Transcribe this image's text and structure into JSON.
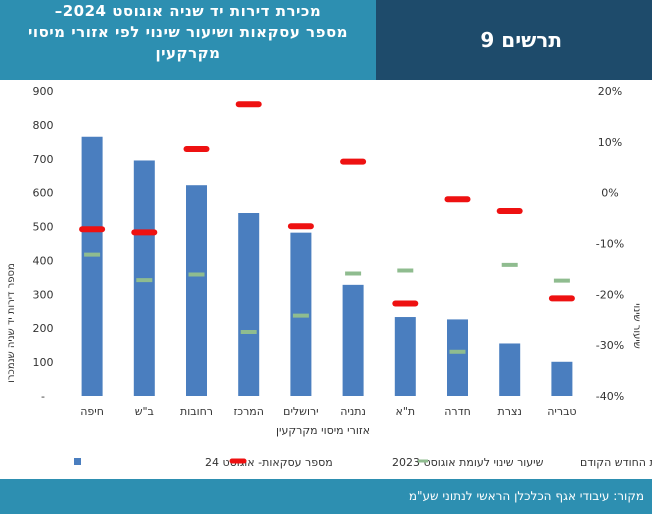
{
  "header": {
    "title_line1": "מכירת דירות יד שניה אוגוסט 2024–",
    "title_line2": "מספר עסקאות ושיעור שינוי לפי אזורי מיסוי",
    "title_line3": "מקרקעין",
    "figure_label": "תרשים 9"
  },
  "footer": {
    "source": "מקור: עיבודי אגף הכלכלן הראשי לנתוני שע\"מ"
  },
  "colors": {
    "bar": "#4a7ebf",
    "yoy": "#ee1111",
    "mom": "#8fbc8f",
    "header": "#2d8fb1",
    "header_dark": "#1e4b6b"
  },
  "chart_data": {
    "type": "bar",
    "categories": [
      "חיפה",
      "ב\"ש",
      "רחובות",
      "המרכז",
      "ירושלים",
      "נתניה",
      "ת\"א",
      "חדרה",
      "נצרת",
      "טבריה"
    ],
    "xlabel": "אזורי מיסוי מקרקעין",
    "ylabel": "מספר דירות יד שניה שנמכרו",
    "y2label": "שיעור שינוי",
    "ylim": [
      0,
      900
    ],
    "y_ticks": [
      "-",
      "100",
      "200",
      "300",
      "400",
      "500",
      "600",
      "700",
      "800",
      "900"
    ],
    "y2lim": [
      -40,
      20
    ],
    "y2_ticks": [
      "-40%",
      "-30%",
      "-20%",
      "-10%",
      "0%",
      "10%",
      "20%"
    ],
    "grid": false,
    "legend_position": "bottom",
    "series": [
      {
        "name": "מספר עסקאות- אוגוסט 24",
        "kind": "bar",
        "values": [
          765,
          695,
          622,
          540,
          482,
          328,
          233,
          226,
          155,
          101
        ]
      },
      {
        "name": "שיעור שינוי לעומת אוגוסט 2023",
        "kind": "marker",
        "values": [
          -7.2,
          -7.8,
          8.6,
          17.4,
          -6.6,
          6.1,
          -21.8,
          -1.3,
          -3.6,
          -20.8
        ]
      },
      {
        "name": "שיעור שינוי לעומת החודש הקודם",
        "kind": "marker",
        "values": [
          -12.2,
          -17.2,
          -16.1,
          -27.4,
          -24.2,
          -15.9,
          -15.3,
          -31.3,
          -14.2,
          -17.3
        ]
      }
    ]
  }
}
